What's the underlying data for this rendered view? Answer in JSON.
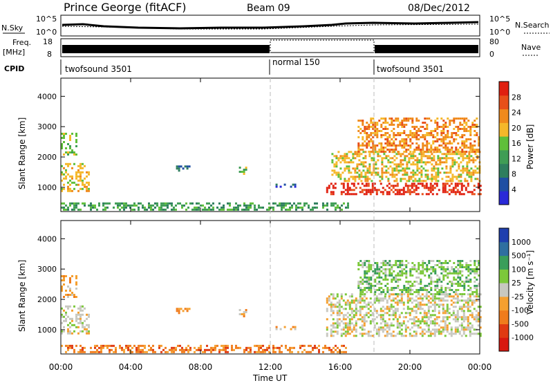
{
  "header": {
    "station": "Prince George (fitACF)",
    "beam": "Beam 09",
    "date": "08/Dec/2012"
  },
  "panels": {
    "nsky_label": "N.Sky",
    "nsearch_label": "N.Search",
    "noise_ticks": [
      "10^5",
      "10^0"
    ],
    "freq_label_1": "Freq.",
    "freq_label_2": "[MHz]",
    "freq_ticks": [
      "18",
      "8"
    ],
    "nave_label": "Nave",
    "nave_ticks": [
      "80",
      "0"
    ],
    "cpid_label": "CPID",
    "cpid_segments": [
      "twofsound 3501",
      "normal 150",
      "twofsound 3501"
    ]
  },
  "colors": {
    "power_scale": [
      "#2a2ad8",
      "#1f4fa3",
      "#2e7e5e",
      "#3f9d55",
      "#5fbf3a",
      "#f5b82a",
      "#f08a1c",
      "#e8501a",
      "#e02010"
    ],
    "velocity_scale": [
      "#1f3fae",
      "#2f6fa0",
      "#3a9e5a",
      "#7cc83a",
      "#c8c8c0",
      "#f5a030",
      "#f07c1c",
      "#e03a12",
      "#d81810"
    ]
  },
  "chart_data": [
    {
      "type": "heatmap",
      "title": "Power",
      "ylabel": "Slant Range [km]",
      "xlabel": "",
      "x_ticks": [
        "00:00",
        "04:00",
        "08:00",
        "12:00",
        "16:00",
        "20:00",
        "00:00"
      ],
      "y_ticks": [
        "1000",
        "2000",
        "3000",
        "4000"
      ],
      "ylim": [
        200,
        4600
      ],
      "colorbar": {
        "label": "Power [dB]",
        "ticks": [
          "4",
          "8",
          "12",
          "16",
          "20",
          "24",
          "28"
        ]
      },
      "regions": [
        {
          "t0": 0.0,
          "t1": 1.6,
          "r0": 900,
          "r1": 1800,
          "level": 5
        },
        {
          "t0": 0.0,
          "t1": 0.9,
          "r0": 2100,
          "r1": 2800,
          "level": 4
        },
        {
          "t0": 10.2,
          "t1": 10.6,
          "r0": 1450,
          "r1": 1750,
          "level": 4
        },
        {
          "t0": 6.6,
          "t1": 7.4,
          "r0": 1550,
          "r1": 1720,
          "level": 2
        },
        {
          "t0": 12.3,
          "t1": 13.4,
          "r0": 1030,
          "r1": 1120,
          "level": 1
        },
        {
          "t0": 15.2,
          "t1": 24.0,
          "r0": 800,
          "r1": 1150,
          "level": 8
        },
        {
          "t0": 15.5,
          "t1": 24.0,
          "r0": 1200,
          "r1": 2200,
          "level": 5
        },
        {
          "t0": 17.0,
          "t1": 24.0,
          "r0": 2200,
          "r1": 3300,
          "level": 6
        },
        {
          "t0": 0.0,
          "t1": 16.5,
          "r0": 250,
          "r1": 500,
          "level": 3
        }
      ]
    },
    {
      "type": "heatmap",
      "title": "Velocity",
      "ylabel": "Slant Range [km]",
      "xlabel": "Time UT",
      "x_ticks": [
        "00:00",
        "04:00",
        "08:00",
        "12:00",
        "16:00",
        "20:00",
        "00:00"
      ],
      "y_ticks": [
        "1000",
        "2000",
        "3000",
        "4000"
      ],
      "ylim": [
        200,
        4600
      ],
      "colorbar": {
        "label": "Velocity [m s⁻¹]",
        "ticks": [
          "1000",
          "500",
          "100",
          "25",
          "-25",
          "-100",
          "-500",
          "-1000"
        ]
      },
      "regions": [
        {
          "t0": 0.0,
          "t1": 1.6,
          "r0": 900,
          "r1": 1800,
          "level": 4
        },
        {
          "t0": 0.0,
          "t1": 0.9,
          "r0": 2100,
          "r1": 2800,
          "level": 5
        },
        {
          "t0": 10.2,
          "t1": 10.6,
          "r0": 1450,
          "r1": 1750,
          "level": 5
        },
        {
          "t0": 6.6,
          "t1": 7.4,
          "r0": 1550,
          "r1": 1720,
          "level": 6
        },
        {
          "t0": 12.3,
          "t1": 13.4,
          "r0": 1030,
          "r1": 1120,
          "level": 5
        },
        {
          "t0": 15.2,
          "t1": 24.0,
          "r0": 800,
          "r1": 2200,
          "level": 4
        },
        {
          "t0": 17.0,
          "t1": 24.0,
          "r0": 2200,
          "r1": 3300,
          "level": 3
        },
        {
          "t0": 0.0,
          "t1": 16.5,
          "r0": 250,
          "r1": 500,
          "level": 6
        }
      ]
    }
  ]
}
